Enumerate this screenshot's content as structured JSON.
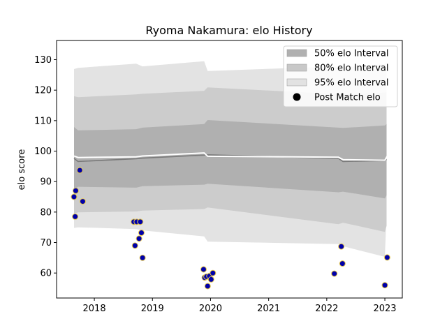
{
  "chart_data": {
    "type": "area",
    "title": "Ryoma Nakamura: elo History",
    "xlabel": "",
    "ylabel": "elo score",
    "xlim": [
      2017.35,
      2023.3
    ],
    "ylim": [
      51.8,
      136.3
    ],
    "x_ticks": [
      2018,
      2019,
      2020,
      2021,
      2022,
      2023
    ],
    "y_ticks": [
      60,
      70,
      80,
      90,
      100,
      110,
      120,
      130
    ],
    "legend_position": "top-right",
    "legend": [
      {
        "label": "50% elo Interval",
        "kind": "patch",
        "color": "#b0b0b0"
      },
      {
        "label": "80% elo Interval",
        "kind": "patch",
        "color": "#c8c8c8"
      },
      {
        "label": "95% elo Interval",
        "kind": "patch",
        "color": "#e2e2e2"
      },
      {
        "label": "Post Match elo",
        "kind": "marker",
        "color": "#000000"
      }
    ],
    "colors": {
      "band_50": "#b0b0b0",
      "band_80": "#cccccc",
      "band_95": "#e3e3e3",
      "mean_line": "#7a7a7a",
      "post_line": "#ffffff",
      "marker_fill": "#0000aa",
      "marker_edge": "#e6c84a"
    },
    "bands": {
      "x": [
        2017.65,
        2017.72,
        2018.72,
        2018.83,
        2019.89,
        2019.95,
        2022.2,
        2022.28,
        2023.0,
        2023.03
      ],
      "mean": [
        97.6,
        96.6,
        97.5,
        97.7,
        98.7,
        98.8,
        97.6,
        96.6,
        96.9,
        97.3
      ],
      "p50_lo": [
        87.5,
        88.3,
        88.0,
        88.5,
        89.0,
        89.3,
        86.5,
        86.7,
        84.5,
        85.5
      ],
      "p50_hi": [
        107.9,
        106.8,
        107.2,
        107.7,
        108.9,
        110.2,
        107.7,
        107.6,
        108.4,
        108.9
      ],
      "p80_lo": [
        79.5,
        79.9,
        80.2,
        80.5,
        81.0,
        81.5,
        76.0,
        76.5,
        73.5,
        75.5
      ],
      "p80_hi": [
        118.0,
        117.7,
        118.6,
        118.8,
        119.8,
        120.9,
        118.7,
        118.6,
        119.2,
        119.4
      ],
      "p95_lo": [
        74.8,
        75.0,
        74.4,
        74.0,
        72.0,
        70.3,
        69.5,
        68.8,
        65.3,
        79.5
      ],
      "p95_hi": [
        126.9,
        127.3,
        128.7,
        127.8,
        129.5,
        126.3,
        127.8,
        127.4,
        128.6,
        129.4
      ]
    },
    "post_line": {
      "x": [
        2017.65,
        2017.72,
        2018.72,
        2018.83,
        2019.89,
        2019.95,
        2022.2,
        2022.28,
        2023.0,
        2023.05
      ],
      "y": [
        98.4,
        97.9,
        98.1,
        98.4,
        99.4,
        98.3,
        98.0,
        97.2,
        97.0,
        98.7
      ]
    },
    "post_match_elo": {
      "x": [
        2017.65,
        2017.67,
        2017.68,
        2017.75,
        2017.8,
        2018.68,
        2018.7,
        2018.73,
        2018.77,
        2018.79,
        2018.81,
        2018.83,
        2019.88,
        2019.9,
        2019.93,
        2019.95,
        2019.98,
        2020.01,
        2020.04,
        2022.13,
        2022.25,
        2022.27,
        2023.0,
        2023.04
      ],
      "y": [
        85.0,
        78.5,
        87.0,
        93.7,
        83.5,
        76.8,
        69.0,
        76.8,
        71.3,
        76.8,
        73.2,
        65.0,
        61.2,
        58.5,
        58.8,
        55.7,
        59.0,
        57.9,
        60.0,
        59.8,
        68.7,
        63.1,
        56.0,
        65.1
      ]
    }
  }
}
